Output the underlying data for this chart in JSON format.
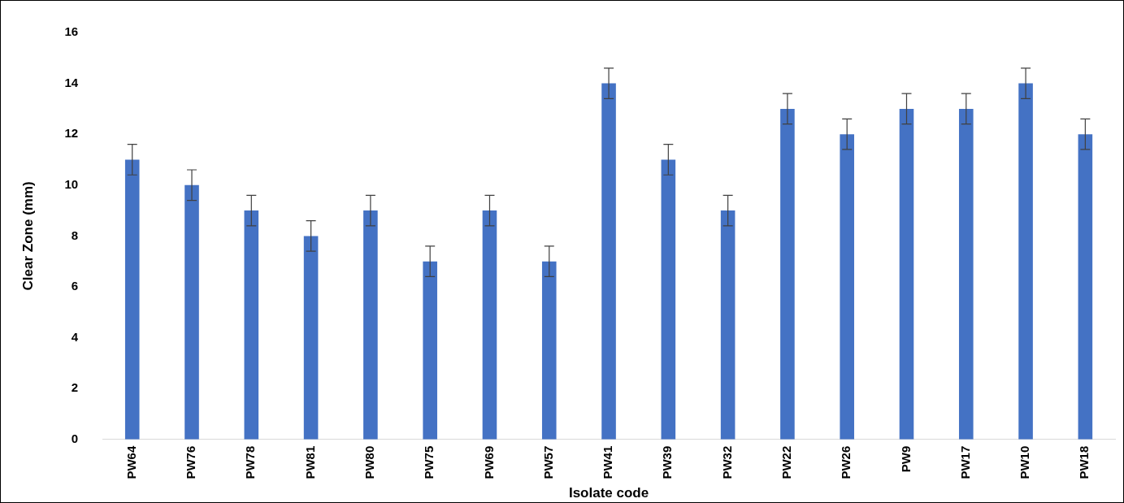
{
  "chart_data": {
    "type": "bar",
    "xlabel": "Isolate code",
    "ylabel": "Clear Zone (mm)",
    "categories": [
      "PW64",
      "PW76",
      "PW78",
      "PW81",
      "PW80",
      "PW75",
      "PW69",
      "PW57",
      "PW41",
      "PW39",
      "PW32",
      "PW22",
      "PW26",
      "PW9",
      "PW17",
      "PW10",
      "PW18"
    ],
    "values": [
      11,
      10,
      9,
      8,
      9,
      7,
      9,
      7,
      14,
      11,
      9,
      13,
      12,
      13,
      13,
      14,
      12
    ],
    "errors": [
      0.6,
      0.6,
      0.6,
      0.6,
      0.6,
      0.6,
      0.6,
      0.6,
      0.6,
      0.6,
      0.6,
      0.6,
      0.6,
      0.6,
      0.6,
      0.6,
      0.6
    ],
    "color": "#4472c4",
    "ylim": [
      0,
      16
    ],
    "yticks": [
      0,
      2,
      4,
      6,
      8,
      10,
      12,
      14,
      16
    ],
    "grid": false,
    "legend": false
  }
}
